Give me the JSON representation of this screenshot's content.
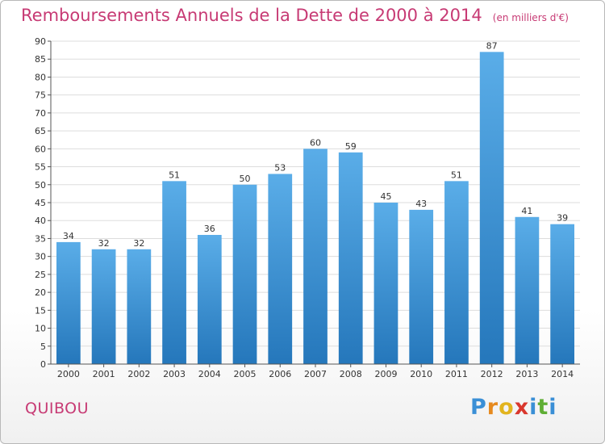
{
  "page": {
    "commune": "QUIBOU",
    "brand": {
      "letters": [
        {
          "char": "P",
          "color": "#3a8fd6"
        },
        {
          "char": "r",
          "color": "#e68a1f"
        },
        {
          "char": "o",
          "color": "#e2b41e"
        },
        {
          "char": "x",
          "color": "#d9372d"
        },
        {
          "char": "i",
          "color": "#3a8fd6"
        },
        {
          "char": "t",
          "color": "#5fae35"
        },
        {
          "char": "i",
          "color": "#3a8fd6"
        }
      ]
    }
  },
  "colors": {
    "title": "#c73a74",
    "bar_light": "#5aade8",
    "bar_dark": "#2577bb",
    "grid": "#dddddd",
    "axis": "#555555"
  },
  "chart_data": {
    "type": "bar",
    "title": "Remboursements Annuels de la Dette de 2000 à 2014",
    "subtitle": "(en milliers d'€)",
    "xlabel": "",
    "ylabel": "",
    "ylim": [
      0,
      90
    ],
    "ytick_step": 5,
    "grid": true,
    "categories": [
      "2000",
      "2001",
      "2002",
      "2003",
      "2004",
      "2005",
      "2006",
      "2007",
      "2008",
      "2009",
      "2010",
      "2011",
      "2012",
      "2013",
      "2014"
    ],
    "values": [
      34,
      32,
      32,
      51,
      36,
      50,
      53,
      60,
      59,
      45,
      43,
      51,
      87,
      41,
      39
    ]
  }
}
